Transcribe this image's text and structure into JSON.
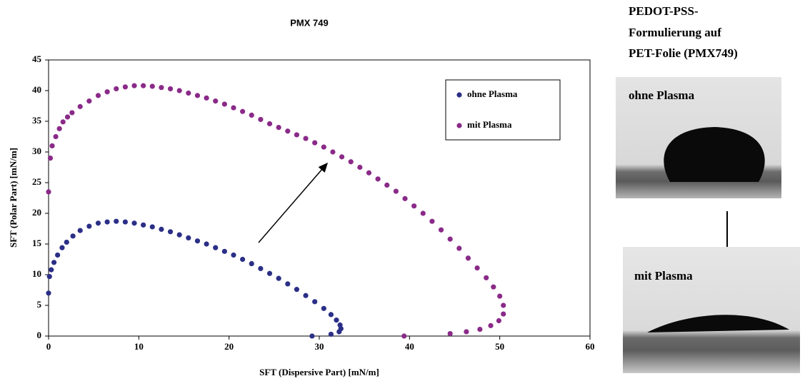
{
  "chart_data": {
    "type": "scatter",
    "title": "PMX 749",
    "xlabel": "SFT (Dispersive Part) [mN/m]",
    "ylabel": "SFT (Polar Part) [mN/m]",
    "xlim": [
      0,
      60
    ],
    "ylim": [
      0,
      45
    ],
    "xticks": [
      0,
      10,
      20,
      30,
      40,
      50,
      60
    ],
    "yticks": [
      0,
      5,
      10,
      15,
      20,
      25,
      30,
      35,
      40,
      45
    ],
    "legend": "upper right",
    "series": [
      {
        "name": "ohne Plasma",
        "color": "#2b2f86",
        "x": [
          0,
          0.1,
          0.3,
          0.6,
          1.0,
          1.5,
          2.0,
          2.7,
          3.5,
          4.5,
          5.5,
          6.5,
          7.5,
          8.5,
          9.5,
          10.5,
          11.5,
          12.5,
          13.5,
          14.5,
          15.5,
          16.5,
          17.5,
          18.5,
          19.5,
          20.5,
          21.5,
          22.5,
          23.5,
          24.5,
          25.5,
          26.5,
          27.5,
          28.5,
          29.5,
          30.5,
          31.3,
          31.9,
          32.3,
          32.4,
          32.2,
          31.3,
          29.2
        ],
        "y": [
          7.0,
          9.7,
          10.8,
          12.0,
          13.2,
          14.4,
          15.3,
          16.3,
          17.2,
          17.9,
          18.4,
          18.6,
          18.7,
          18.6,
          18.4,
          18.1,
          17.8,
          17.4,
          17.0,
          16.5,
          16.0,
          15.5,
          15.0,
          14.4,
          13.8,
          13.2,
          12.5,
          11.8,
          11.0,
          10.2,
          9.4,
          8.5,
          7.6,
          6.6,
          5.6,
          4.5,
          3.5,
          2.6,
          1.8,
          1.2,
          0.7,
          0.3,
          0.0
        ]
      },
      {
        "name": "mit Plasma",
        "color": "#8a2a88",
        "x": [
          0,
          0.2,
          0.4,
          0.8,
          1.2,
          1.6,
          2.1,
          2.6,
          3.5,
          4.5,
          5.5,
          6.5,
          7.5,
          8.5,
          9.5,
          10.5,
          11.5,
          12.5,
          13.5,
          14.5,
          15.5,
          16.5,
          17.5,
          18.5,
          19.5,
          20.5,
          21.5,
          22.5,
          23.5,
          24.5,
          25.5,
          26.5,
          27.5,
          28.5,
          29.5,
          30.5,
          31.5,
          32.5,
          33.5,
          34.5,
          35.5,
          36.5,
          37.5,
          38.5,
          39.5,
          40.5,
          41.5,
          42.5,
          43.5,
          44.5,
          45.5,
          46.5,
          47.5,
          48.5,
          49.3,
          50.0,
          50.4,
          50.4,
          49.9,
          49.0,
          47.8,
          46.3,
          44.5,
          39.4
        ],
        "y": [
          23.5,
          29.0,
          31.0,
          32.5,
          33.8,
          34.9,
          35.7,
          36.4,
          37.4,
          38.3,
          39.2,
          39.8,
          40.3,
          40.6,
          40.8,
          40.8,
          40.7,
          40.5,
          40.3,
          40.0,
          39.6,
          39.2,
          38.8,
          38.3,
          37.8,
          37.2,
          36.6,
          36.0,
          35.3,
          34.6,
          34.0,
          33.4,
          32.8,
          32.2,
          31.5,
          30.8,
          30.0,
          29.2,
          28.4,
          27.5,
          26.6,
          25.6,
          24.6,
          23.6,
          22.4,
          21.2,
          20.0,
          18.7,
          17.3,
          15.8,
          14.3,
          12.7,
          11.1,
          9.5,
          8.0,
          6.5,
          5.0,
          3.6,
          2.5,
          1.7,
          1.1,
          0.7,
          0.4,
          0.0
        ]
      }
    ]
  },
  "panel": {
    "title_lines": [
      "PEDOT-PSS-",
      "Formulierung auf",
      "PET-Folie (PMX749)"
    ],
    "top_label": "ohne Plasma",
    "bottom_label": "mit Plasma"
  }
}
